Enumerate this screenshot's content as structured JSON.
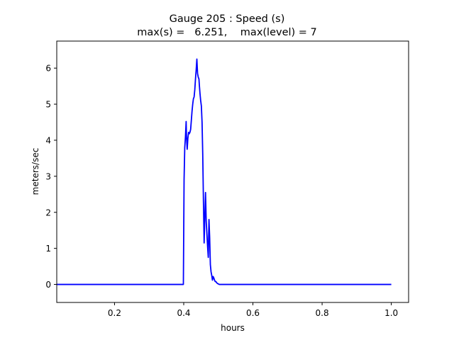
{
  "chart_data": {
    "type": "line",
    "title": "Gauge 205 : Speed (s)",
    "subtitle": "max(s) =   6.251,    max(level) = 7",
    "xlabel": "hours",
    "ylabel": "meters/sec",
    "xlim": [
      0.033,
      1.05
    ],
    "ylim": [
      -0.5,
      6.75
    ],
    "xticks": [
      0.2,
      0.4,
      0.6,
      0.8,
      1.0
    ],
    "xtick_labels": [
      "0.2",
      "0.4",
      "0.6",
      "0.8",
      "1.0"
    ],
    "yticks": [
      0,
      1,
      2,
      3,
      4,
      5,
      6
    ],
    "ytick_labels": [
      "0",
      "1",
      "2",
      "3",
      "4",
      "5",
      "6"
    ],
    "grid": false,
    "series": [
      {
        "color": "#0000ff",
        "x": [
          0.033,
          0.1,
          0.2,
          0.3,
          0.399,
          0.401,
          0.403,
          0.405,
          0.407,
          0.408,
          0.41,
          0.412,
          0.414,
          0.416,
          0.418,
          0.42,
          0.422,
          0.424,
          0.426,
          0.428,
          0.43,
          0.432,
          0.434,
          0.436,
          0.438,
          0.44,
          0.442,
          0.444,
          0.445,
          0.447,
          0.449,
          0.451,
          0.453,
          0.455,
          0.457,
          0.459,
          0.461,
          0.463,
          0.465,
          0.467,
          0.469,
          0.471,
          0.473,
          0.475,
          0.477,
          0.479,
          0.481,
          0.483,
          0.485,
          0.487,
          0.489,
          0.491,
          0.493,
          0.495,
          0.497,
          0.499,
          0.501,
          0.503,
          0.505,
          0.508,
          0.512,
          0.515,
          0.52,
          0.525,
          0.6,
          0.7,
          0.8,
          0.9,
          1.0
        ],
        "y": [
          0,
          0,
          0,
          0,
          0,
          2.9,
          3.8,
          4.1,
          4.52,
          4.1,
          3.75,
          4.05,
          4.22,
          4.18,
          4.22,
          4.3,
          4.55,
          4.8,
          5.0,
          5.15,
          5.2,
          5.4,
          5.7,
          5.95,
          6.25,
          5.85,
          5.75,
          5.7,
          5.55,
          5.3,
          5.1,
          4.95,
          4.5,
          3.6,
          2.3,
          1.15,
          1.9,
          2.55,
          1.75,
          1.4,
          1.05,
          0.75,
          1.8,
          1.3,
          0.55,
          0.35,
          0.25,
          0.12,
          0.22,
          0.18,
          0.12,
          0.08,
          0.08,
          0.05,
          0.03,
          0.02,
          0.01,
          0,
          0,
          0,
          0,
          0,
          0,
          0,
          0,
          0,
          0,
          0,
          0
        ]
      }
    ]
  }
}
